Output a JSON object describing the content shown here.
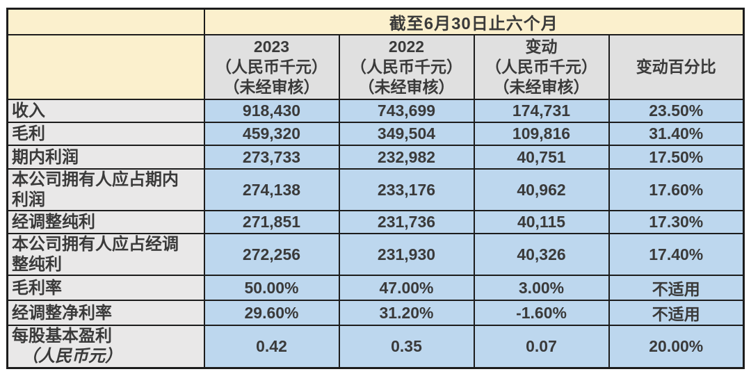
{
  "colors": {
    "title_bg": "#fbf0cd",
    "column_header_bg": "#e0e0e0",
    "row_label_bg": "#e9e8e8",
    "value_bg": "#bdd7ee",
    "border": "#1c1c1c",
    "text": "#3a3a3a"
  },
  "table": {
    "title": "截至6月30日止六个月",
    "columns": [
      {
        "lines": [
          "2023",
          "（人民币千元）",
          "（未经审核）"
        ]
      },
      {
        "lines": [
          "2022",
          "（人民币千元）",
          "（未经审核）"
        ]
      },
      {
        "lines": [
          "变动",
          "（人民币千元）",
          "（未经审核）"
        ]
      },
      {
        "lines": [
          "变动百分比"
        ]
      }
    ],
    "rows": [
      {
        "label": "收入",
        "values": [
          "918,430",
          "743,699",
          "174,731",
          "23.50%"
        ]
      },
      {
        "label": "毛利",
        "values": [
          "459,320",
          "349,504",
          "109,816",
          "31.40%"
        ]
      },
      {
        "label": "期内利润",
        "values": [
          "273,733",
          "232,982",
          "40,751",
          "17.50%"
        ]
      },
      {
        "label": "本公司拥有人应占期内利润",
        "values": [
          "274,138",
          "233,176",
          "40,962",
          "17.60%"
        ]
      },
      {
        "label": "经调整纯利",
        "values": [
          "271,851",
          "231,736",
          "40,115",
          "17.30%"
        ]
      },
      {
        "label": "本公司拥有人应占经调整纯利",
        "values": [
          "272,256",
          "231,930",
          "40,326",
          "17.40%"
        ]
      },
      {
        "label": "毛利率",
        "values": [
          "50.00%",
          "47.00%",
          "3.00%",
          "不适用"
        ]
      },
      {
        "label": "经调整净利率",
        "values": [
          "29.60%",
          "31.20%",
          "-1.60%",
          "不适用"
        ]
      },
      {
        "label": "每股基本盈利",
        "label_sub": "（人民币元）",
        "values": [
          "0.42",
          "0.35",
          "0.07",
          "20.00%"
        ]
      }
    ]
  },
  "chart_data": {
    "type": "table",
    "title": "截至6月30日止六个月",
    "columns": [
      "",
      "2023（人民币千元）（未经审核）",
      "2022（人民币千元）（未经审核）",
      "变动（人民币千元）（未经审核）",
      "变动百分比"
    ],
    "rows": [
      [
        "收入",
        918430,
        743699,
        174731,
        "23.50%"
      ],
      [
        "毛利",
        459320,
        349504,
        109816,
        "31.40%"
      ],
      [
        "期内利润",
        273733,
        232982,
        40751,
        "17.50%"
      ],
      [
        "本公司拥有人应占期内利润",
        274138,
        233176,
        40962,
        "17.60%"
      ],
      [
        "经调整纯利",
        271851,
        231736,
        40115,
        "17.30%"
      ],
      [
        "本公司拥有人应占经调整纯利",
        272256,
        231930,
        40326,
        "17.40%"
      ],
      [
        "毛利率",
        "50.00%",
        "47.00%",
        "3.00%",
        "不适用"
      ],
      [
        "经调整净利率",
        "29.60%",
        "31.20%",
        "-1.60%",
        "不适用"
      ],
      [
        "每股基本盈利（人民币元）",
        0.42,
        0.35,
        0.07,
        "20.00%"
      ]
    ]
  }
}
